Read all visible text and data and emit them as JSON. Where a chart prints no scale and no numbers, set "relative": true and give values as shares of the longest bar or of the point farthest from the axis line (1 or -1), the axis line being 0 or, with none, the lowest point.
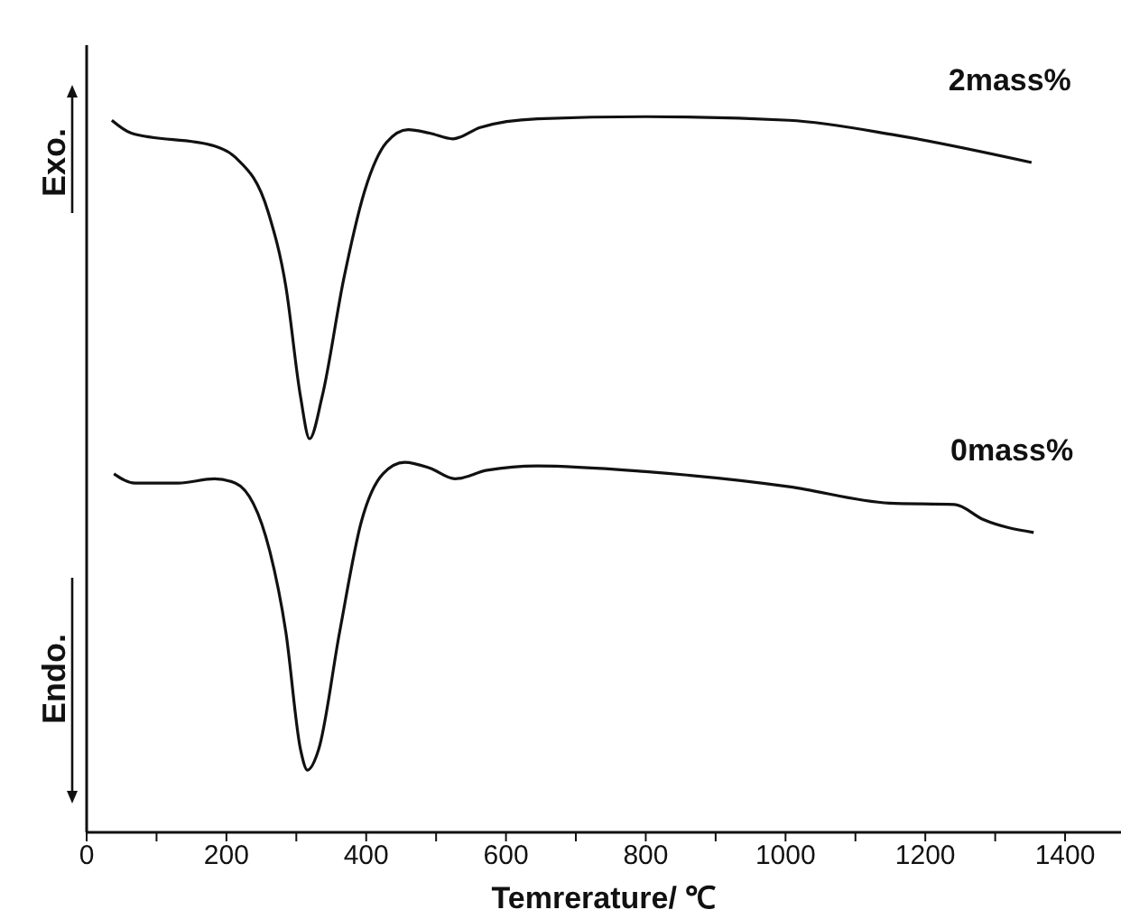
{
  "chart_data": {
    "type": "line",
    "relative": true,
    "xlabel": "Temrerature/ ℃",
    "annotations": [
      "Exo.",
      "Endo."
    ],
    "xlim": [
      0,
      1480
    ],
    "xticks": [
      0,
      {
        "value": 100,
        "label": null
      },
      200,
      {
        "value": 300,
        "label": null
      },
      400,
      {
        "value": 500,
        "label": null
      },
      600,
      {
        "value": 700,
        "label": null
      },
      800,
      {
        "value": 900,
        "label": null
      },
      1000,
      {
        "value": 1100,
        "label": null
      },
      1200,
      {
        "value": 1300,
        "label": null
      },
      1400
    ],
    "tick_labels": "x",
    "grid": false,
    "legend": false,
    "marker": "none",
    "line_style": "solid",
    "series": [
      {
        "name": "2mass%",
        "color": "#111111",
        "x": [
          36,
          64,
          183,
          213,
          260,
          285,
          306,
          319,
          337,
          368,
          398,
          429,
          460,
          491,
          524,
          563,
          645,
          800,
          1005,
          1159,
          1352
        ],
        "values": [
          0.995,
          0.977,
          0.959,
          0.943,
          0.866,
          0.763,
          0.609,
          0.55,
          0.609,
          0.774,
          0.897,
          0.964,
          0.982,
          0.977,
          0.969,
          0.985,
          0.997,
          1.0,
          0.995,
          0.974,
          0.936
        ]
      },
      {
        "name": "0mass%",
        "color": "#111111",
        "x": [
          39,
          69,
          131,
          183,
          213,
          262,
          285,
          306,
          316,
          332,
          362,
          393,
          424,
          455,
          491,
          527,
          573,
          645,
          800,
          1005,
          1149,
          1242,
          1283,
          1355
        ],
        "values": [
          0.501,
          0.488,
          0.488,
          0.494,
          0.488,
          0.393,
          0.28,
          0.116,
          0.087,
          0.116,
          0.28,
          0.434,
          0.501,
          0.517,
          0.509,
          0.494,
          0.506,
          0.512,
          0.504,
          0.483,
          0.46,
          0.458,
          0.437,
          0.419
        ]
      }
    ]
  }
}
